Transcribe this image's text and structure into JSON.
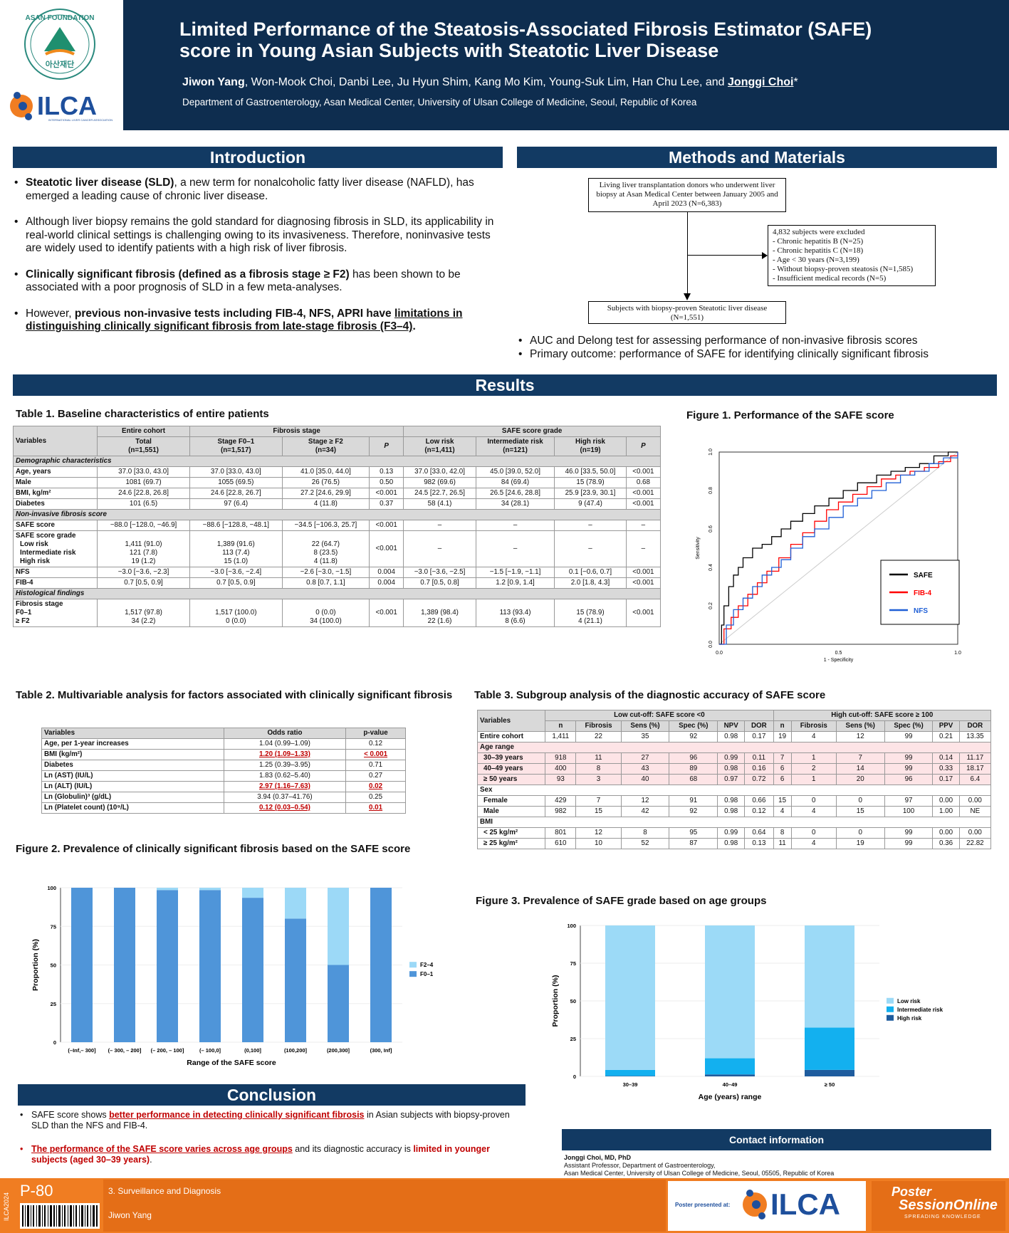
{
  "header": {
    "title_line1": "Limited Performance of the Steatosis-Associated Fibrosis Estimator (SAFE)",
    "title_line2": "score in Young Asian Subjects with Steatotic Liver Disease",
    "first_author": "Jiwon Yang",
    "authors_mid": ", Won-Mook Choi, Danbi Lee, Ju Hyun Shim, Kang Mo Kim, Young-Suk Lim, Han Chu Lee, and ",
    "last_author": "Jonggi Choi",
    "last_mark": "*",
    "affiliation": "Department of Gastroenterology, Asan Medical Center, University of Ulsan College of Medicine, Seoul, Republic of Korea",
    "logo1_top": "ASAN FOUNDATION",
    "logo1_bottom": "아산재단",
    "logo2": "ILCA",
    "logo2_sub": "INTERNATIONAL LIVER CANCER ASSOCIATION"
  },
  "intro": {
    "heading": "Introduction",
    "b1_bold": "Steatotic liver disease (SLD)",
    "b1_rest": ", a new term for nonalcoholic fatty liver disease (NAFLD), has emerged a leading cause of chronic liver disease.",
    "b2": "Although liver biopsy remains the gold standard for diagnosing fibrosis in SLD, its applicability in real-world clinical settings is challenging owing to its invasiveness. Therefore, noninvasive tests are widely used to identify patients with a high risk of liver fibrosis.",
    "b3_bold": "Clinically significant fibrosis (defined as a fibrosis stage ≥ F2)",
    "b3_rest": " has been shown to be associated with a poor prognosis of SLD in a few meta-analyses.",
    "b4_a": "However, ",
    "b4_bold": "previous non-invasive tests including FIB-4, NFS, APRI have ",
    "b4_u": "limitations in distinguishing clinically significant fibrosis from late-stage fibrosis (F3–4)",
    "b4_end": "."
  },
  "methods": {
    "heading": "Methods and Materials",
    "box1": "Living liver transplantation donors who underwent liver biopsy at Asan Medical Center between January 2005 and April 2023 (N=6,383)",
    "ex_title": "4,832 subjects were excluded",
    "ex_items": [
      "- Chronic hepatitis B (N=25)",
      "- Chronic hepatitis C (N=18)",
      "- Age < 30 years (N=3,199)",
      "- Without biopsy-proven steatosis (N=1,585)",
      "- Insufficient medical records (N=5)"
    ],
    "box3_l1": "Subjects with biopsy-proven Steatotic liver disease",
    "box3_l2": "(N=1,551)",
    "b1": "AUC and Delong test for assessing performance of non-invasive fibrosis scores",
    "b2": "Primary outcome: performance of SAFE for identifying clinically significant fibrosis"
  },
  "results": {
    "heading": "Results"
  },
  "table1": {
    "caption": "Table 1. Baseline characteristics of entire patients",
    "h_var": "Variables",
    "h_entire": "Entire cohort",
    "h_fib": "Fibrosis stage",
    "h_safe": "SAFE score grade",
    "h_total": "Total",
    "h_total_n": "(n=1,551)",
    "h_f01": "Stage F0–1",
    "h_f01_n": "(n=1,517)",
    "h_f2": "Stage ≥ F2",
    "h_f2_n": "(n=34)",
    "h_p": "P",
    "h_low": "Low risk",
    "h_low_n": "(n=1,411)",
    "h_int": "Intermediate risk",
    "h_int_n": "(n=121)",
    "h_high": "High risk",
    "h_high_n": "(n=19)",
    "cat1": "Demographic characteristics",
    "rows1": [
      [
        "Age, years",
        "37.0 [33.0, 43.0]",
        "37.0 [33.0, 43.0]",
        "41.0 [35.0, 44.0]",
        "0.13",
        "37.0 [33.0, 42.0]",
        "45.0 [39.0, 52.0]",
        "46.0 [33.5, 50.0]",
        "<0.001"
      ],
      [
        "Male",
        "1081 (69.7)",
        "1055 (69.5)",
        "26 (76.5)",
        "0.50",
        "982 (69.6)",
        "84 (69.4)",
        "15 (78.9)",
        "0.68"
      ],
      [
        "BMI, kg/m²",
        "24.6 [22.8, 26.8]",
        "24.6 [22.8, 26.7]",
        "27.2 [24.6, 29.9]",
        "<0.001",
        "24.5 [22.7, 26.5]",
        "26.5 [24.6, 28.8]",
        "25.9 [23.9, 30.1]",
        "<0.001"
      ],
      [
        "Diabetes",
        "101 (6.5)",
        "97 (6.4)",
        "4 (11.8)",
        "0.37",
        "58 (4.1)",
        "34 (28.1)",
        "9 (47.4)",
        "<0.001"
      ]
    ],
    "cat2": "Non-invasive fibrosis score",
    "safe_row": [
      "SAFE score",
      "−88.0 [−128.0, −46.9]",
      "−88.6 [−128.8, −48.1]",
      "−34.5 [−106.3, 25.7]",
      "<0.001",
      "–",
      "–",
      "–",
      "–"
    ],
    "grade_label": "SAFE score grade",
    "grade_sub": [
      "Low risk",
      "Intermediate risk",
      "High risk"
    ],
    "grade_total": [
      "1,411 (91.0)",
      "121 (7.8)",
      "19 (1.2)"
    ],
    "grade_f01": [
      "1,389 (91.6)",
      "113 (7.4)",
      "15 (1.0)"
    ],
    "grade_f2": [
      "22 (64.7)",
      "8 (23.5)",
      "4 (11.8)"
    ],
    "grade_p": "<0.001",
    "dash": "–",
    "rows2": [
      [
        "NFS",
        "−3.0 [−3.6, −2.3]",
        "−3.0 [−3.6, −2.4]",
        "−2.6 [−3.0, −1.5]",
        "0.004",
        "−3.0 [−3.6, −2.5]",
        "−1.5 [−1.9, −1.1]",
        "0.1 [−0.6, 0.7]",
        "<0.001"
      ],
      [
        "FIB-4",
        "0.7 [0.5, 0.9]",
        "0.7 [0.5, 0.9]",
        "0.8 [0.7, 1.1]",
        "0.004",
        "0.7 [0.5, 0.8]",
        "1.2 [0.9, 1.4]",
        "2.0 [1.8, 4.3]",
        "<0.001"
      ]
    ],
    "cat3": "Histological findings",
    "fs_label": "Fibrosis stage",
    "fs_sub": [
      "F0–1",
      "≥ F2"
    ],
    "fs_total": [
      "1,517 (97.8)",
      "34 (2.2)"
    ],
    "fs_f01": [
      "1,517 (100.0)",
      "0 (0.0)"
    ],
    "fs_f2": [
      "0 (0.0)",
      "34 (100.0)"
    ],
    "fs_p": "<0.001",
    "fs_low": [
      "1,389 (98.4)",
      "22 (1.6)"
    ],
    "fs_int": [
      "113 (93.4)",
      "8 (6.6)"
    ],
    "fs_high": [
      "15 (78.9)",
      "4 (21.1)"
    ],
    "fs_p2": "<0.001"
  },
  "table2": {
    "caption": "Table 2. Multivariable analysis for factors associated with clinically significant fibrosis",
    "headers": [
      "Variables",
      "Odds ratio",
      "p-value"
    ],
    "rows": [
      [
        "Age, per 1-year increases",
        "1.04 (0.99–1.09)",
        "0.12",
        false
      ],
      [
        "BMI (kg/m²)",
        "1.20 (1.09–1.33)",
        "< 0.001",
        true
      ],
      [
        "Diabetes",
        "1.25 (0.39–3.95)",
        "0.71",
        false
      ],
      [
        "Ln (AST) (IU/L)",
        "1.83 (0.62–5.40)",
        "0.27",
        false
      ],
      [
        "Ln (ALT) (IU/L)",
        "2.97 (1.16–7.63)",
        "0.02",
        true
      ],
      [
        "Ln (Globulin)³ (g/dL)",
        "3.94 (0.37–41.76)",
        "0.25",
        false
      ],
      [
        "Ln (Platelet count) (10⁹/L)",
        "0.12 (0.03–0.54)",
        "0.01",
        true
      ]
    ]
  },
  "table3": {
    "caption": "Table 3. Subgroup analysis of the diagnostic accuracy of SAFE score",
    "h_var": "Variables",
    "h_low": "Low cut-off: SAFE score <0",
    "h_high": "High cut-off: SAFE score ≥ 100",
    "sub_low": [
      "n",
      "Fibrosis",
      "Sens (%)",
      "Spec (%)",
      "NPV",
      "DOR"
    ],
    "sub_high": [
      "n",
      "Fibrosis",
      "Sens (%)",
      "Spec (%)",
      "PPV",
      "DOR"
    ],
    "entire": [
      "Entire cohort",
      "1,411",
      "22",
      "35",
      "92",
      "0.98",
      "0.17",
      "19",
      "4",
      "12",
      "99",
      "0.21",
      "13.35"
    ],
    "age_label": "Age range",
    "age_rows": [
      [
        "30–39 years",
        "918",
        "11",
        "27",
        "96",
        "0.99",
        "0.11",
        "7",
        "1",
        "7",
        "99",
        "0.14",
        "11.17"
      ],
      [
        "40–49 years",
        "400",
        "8",
        "43",
        "89",
        "0.98",
        "0.16",
        "6",
        "2",
        "14",
        "99",
        "0.33",
        "18.17"
      ],
      [
        "≥ 50 years",
        "93",
        "3",
        "40",
        "68",
        "0.97",
        "0.72",
        "6",
        "1",
        "20",
        "96",
        "0.17",
        "6.4"
      ]
    ],
    "sex_label": "Sex",
    "sex_rows": [
      [
        "Female",
        "429",
        "7",
        "12",
        "91",
        "0.98",
        "0.66",
        "15",
        "0",
        "0",
        "97",
        "0.00",
        "0.00"
      ],
      [
        "Male",
        "982",
        "15",
        "42",
        "92",
        "0.98",
        "0.12",
        "4",
        "4",
        "15",
        "100",
        "1.00",
        "NE"
      ]
    ],
    "bmi_label": "BMI",
    "bmi_rows": [
      [
        "< 25 kg/m²",
        "801",
        "12",
        "8",
        "95",
        "0.99",
        "0.64",
        "8",
        "0",
        "0",
        "99",
        "0.00",
        "0.00"
      ],
      [
        "≥ 25 kg/m²",
        "610",
        "10",
        "52",
        "87",
        "0.98",
        "0.13",
        "11",
        "4",
        "19",
        "99",
        "0.36",
        "22.82"
      ]
    ]
  },
  "fig1": {
    "caption": "Figure 1. Performance of the SAFE score",
    "chart_data": {
      "type": "line",
      "xlabel": "1 - Specificity",
      "ylabel": "Sensitivity",
      "xlim": [
        0,
        1
      ],
      "ylim": [
        0,
        1
      ],
      "xticks": [
        "0.0",
        "0.5",
        "1.0"
      ],
      "yticks": [
        "0.0",
        "0.2",
        "0.4",
        "0.6",
        "0.8",
        "1.0"
      ],
      "legend": "right",
      "series": [
        {
          "name": "SAFE",
          "color": "#000000",
          "x": [
            0,
            0.01,
            0.02,
            0.04,
            0.06,
            0.08,
            0.1,
            0.14,
            0.18,
            0.22,
            0.26,
            0.3,
            0.35,
            0.4,
            0.46,
            0.52,
            0.58,
            0.66,
            0.72,
            0.78,
            0.84,
            0.9,
            0.96,
            1
          ],
          "y": [
            0,
            0.1,
            0.2,
            0.3,
            0.36,
            0.4,
            0.45,
            0.5,
            0.52,
            0.56,
            0.6,
            0.64,
            0.68,
            0.72,
            0.76,
            0.8,
            0.84,
            0.88,
            0.9,
            0.92,
            0.94,
            0.98,
            1,
            1
          ]
        },
        {
          "name": "FIB-4",
          "color": "#ff0000",
          "x": [
            0,
            0.02,
            0.05,
            0.08,
            0.12,
            0.16,
            0.2,
            0.25,
            0.3,
            0.35,
            0.4,
            0.45,
            0.5,
            0.56,
            0.62,
            0.68,
            0.74,
            0.8,
            0.86,
            0.92,
            0.97,
            1
          ],
          "y": [
            0,
            0.08,
            0.14,
            0.2,
            0.26,
            0.32,
            0.38,
            0.45,
            0.52,
            0.58,
            0.64,
            0.7,
            0.74,
            0.78,
            0.82,
            0.86,
            0.88,
            0.9,
            0.92,
            0.95,
            0.98,
            1
          ]
        },
        {
          "name": "NFS",
          "color": "#1f5fd6",
          "x": [
            0,
            0.03,
            0.06,
            0.1,
            0.14,
            0.18,
            0.22,
            0.26,
            0.3,
            0.35,
            0.4,
            0.46,
            0.52,
            0.58,
            0.64,
            0.7,
            0.76,
            0.82,
            0.88,
            0.94,
            1
          ],
          "y": [
            0,
            0.1,
            0.18,
            0.24,
            0.3,
            0.36,
            0.4,
            0.44,
            0.5,
            0.56,
            0.6,
            0.66,
            0.72,
            0.76,
            0.8,
            0.84,
            0.88,
            0.9,
            0.94,
            0.97,
            1
          ]
        }
      ]
    }
  },
  "fig2": {
    "caption": "Figure 2. Prevalence of clinically significant fibrosis based on the SAFE score",
    "chart_data": {
      "type": "bar",
      "categories": [
        "(–Inf,– 300]",
        "(– 300, – 200]",
        "(– 200, – 100]",
        "(– 100,0]",
        "(0,100]",
        "(100,200]",
        "(200,300]",
        "(300, Inf]"
      ],
      "series": [
        {
          "name": "F0–1",
          "color": "#4f95d9",
          "values": [
            100,
            100,
            98.5,
            98.5,
            93.5,
            80,
            50,
            100
          ]
        },
        {
          "name": "F2–4",
          "color": "#9cd9f7",
          "values": [
            0,
            0,
            1.5,
            1.5,
            6.5,
            20,
            50,
            0
          ]
        }
      ],
      "xlabel": "Range of the SAFE score",
      "ylabel": "Proportion (%)",
      "ylim": [
        0,
        100
      ],
      "yticks": [
        "0",
        "25",
        "50",
        "75",
        "100"
      ],
      "legend": "right"
    }
  },
  "fig3": {
    "caption": "Figure 3. Prevalence of SAFE grade based on age groups",
    "chart_data": {
      "type": "bar",
      "categories": [
        "30–39",
        "40–49",
        "≥ 50"
      ],
      "series": [
        {
          "name": "High risk",
          "color": "#1e5c9e",
          "values": [
            0.3,
            1.3,
            4.3
          ]
        },
        {
          "name": "Intermediate risk",
          "color": "#13b0ef",
          "values": [
            4,
            10.7,
            28
          ]
        },
        {
          "name": "Low risk",
          "color": "#9cdaf7",
          "values": [
            95.7,
            88,
            67.7
          ]
        }
      ],
      "xlabel": "Age (years) range",
      "ylabel": "Proportion (%)",
      "ylim": [
        0,
        100
      ],
      "yticks": [
        "0",
        "25",
        "50",
        "75",
        "100"
      ],
      "legend": "right"
    }
  },
  "conclusion": {
    "heading": "Conclusion",
    "b1_a": "SAFE score shows ",
    "b1_u": "better performance in detecting clinically significant fibrosis",
    "b1_b": " in Asian subjects with biopsy-proven SLD than the NFS and FIB-4.",
    "b2_u": "The performance of the SAFE score varies across age groups",
    "b2_b": " and its diagnostic accuracy is ",
    "b2_c": "limited in younger subjects (aged 30–39 years)",
    "b2_d": "."
  },
  "contact": {
    "heading": "Contact information",
    "name": "Jonggi Choi, MD, PhD",
    "line1": "Assistant Professor, Department of Gastroenterology,",
    "line2": "Asan Medical Center, University of Ulsan College of Medicine, Seoul, 05505, Republic of Korea"
  },
  "footer": {
    "code": "ILCA2024",
    "poster_no": "P-80",
    "category": "3. Surveillance and Diagnosis",
    "presenter": "Jiwon Yang",
    "presented_at": "Poster presented at:",
    "ilca": "ILCA",
    "pso_top": "Poster",
    "pso_mid": "SessionOnline",
    "pso_sub": "SPREADING KNOWLEDGE"
  }
}
